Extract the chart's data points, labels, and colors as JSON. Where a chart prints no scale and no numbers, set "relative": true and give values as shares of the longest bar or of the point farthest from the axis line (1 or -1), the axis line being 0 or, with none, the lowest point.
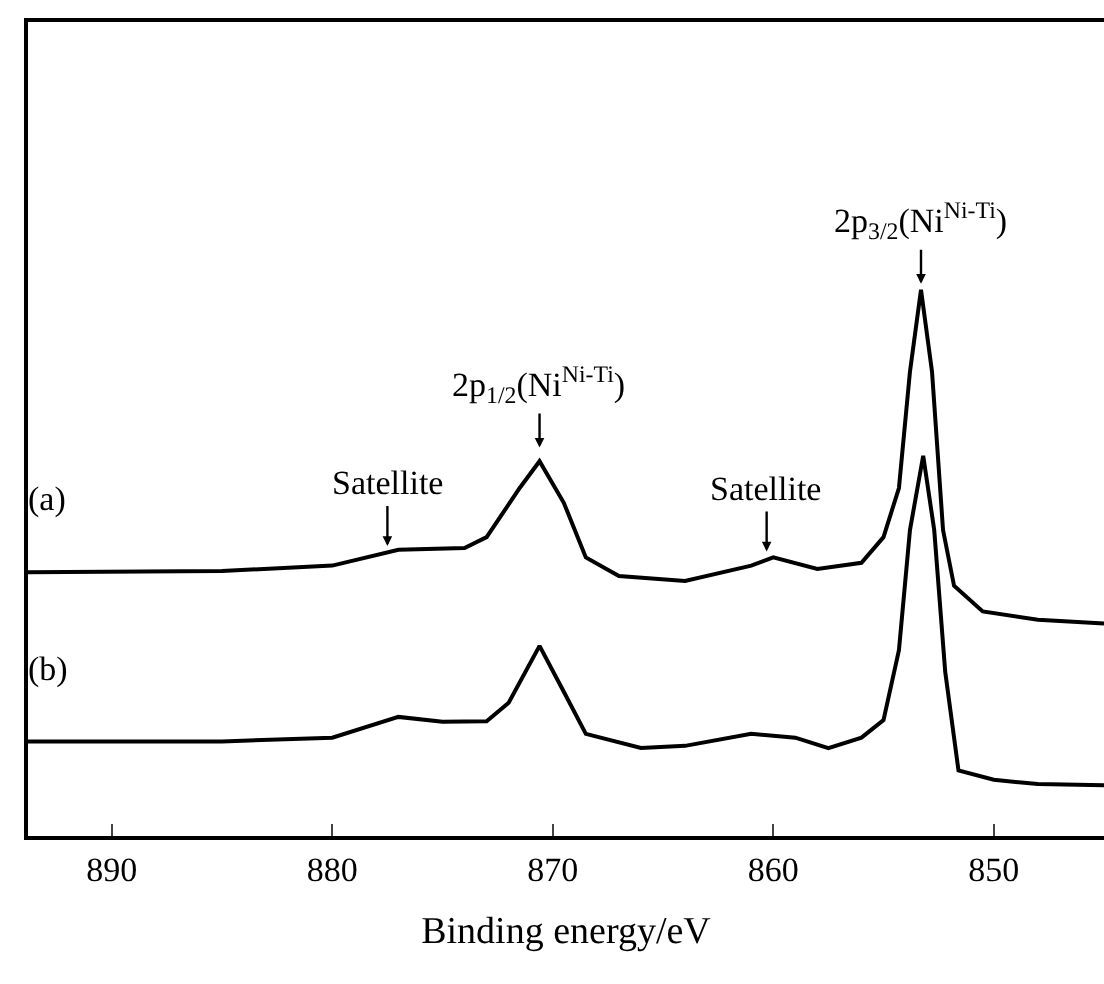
{
  "chart_data": {
    "type": "line",
    "relative": true,
    "xlabel": "Binding energy/eV",
    "xlim": [
      893.8,
      845
    ],
    "xticks": [
      890,
      880,
      870,
      860,
      850
    ],
    "legend": false,
    "series": [
      {
        "name": "(a)",
        "color": "#000000",
        "x": [
          893.8,
          885,
          880,
          877,
          874,
          873,
          871.5,
          870.6,
          869.5,
          868.5,
          867,
          864,
          861,
          860,
          858,
          856,
          855,
          854.3,
          853.8,
          853.3,
          852.8,
          852.3,
          851.8,
          850.5,
          848,
          845
        ],
        "values": [
          0.483,
          0.485,
          0.495,
          0.524,
          0.527,
          0.547,
          0.637,
          0.686,
          0.61,
          0.51,
          0.476,
          0.467,
          0.495,
          0.51,
          0.489,
          0.5,
          0.547,
          0.637,
          0.85,
          1.0,
          0.85,
          0.56,
          0.458,
          0.411,
          0.396,
          0.389
        ]
      },
      {
        "name": "(b)",
        "color": "#000000",
        "x": [
          893.8,
          885,
          880,
          877,
          875,
          873,
          872,
          870.6,
          869.5,
          868.5,
          866,
          864,
          861,
          859,
          857.5,
          856,
          855,
          854.3,
          853.8,
          853.2,
          852.7,
          852.2,
          851.6,
          850,
          848,
          845
        ],
        "values": [
          0.173,
          0.173,
          0.18,
          0.218,
          0.209,
          0.21,
          0.244,
          0.348,
          0.264,
          0.187,
          0.161,
          0.165,
          0.187,
          0.18,
          0.161,
          0.18,
          0.212,
          0.34,
          0.56,
          0.696,
          0.56,
          0.3,
          0.12,
          0.103,
          0.095,
          0.093
        ]
      }
    ],
    "annotations": [
      {
        "text": "Satellite",
        "x": 877.5,
        "y": 0.52
      },
      {
        "text": "2p$_{1/2}$(Ni$^{Ni-Ti}$)",
        "x": 870.6,
        "y": 0.7
      },
      {
        "text": "Satellite",
        "x": 860.3,
        "y": 0.51
      },
      {
        "text": "2p$_{3/2}$(Ni$^{Ni-Ti}$)",
        "x": 853.3,
        "y": 1.0
      }
    ]
  }
}
